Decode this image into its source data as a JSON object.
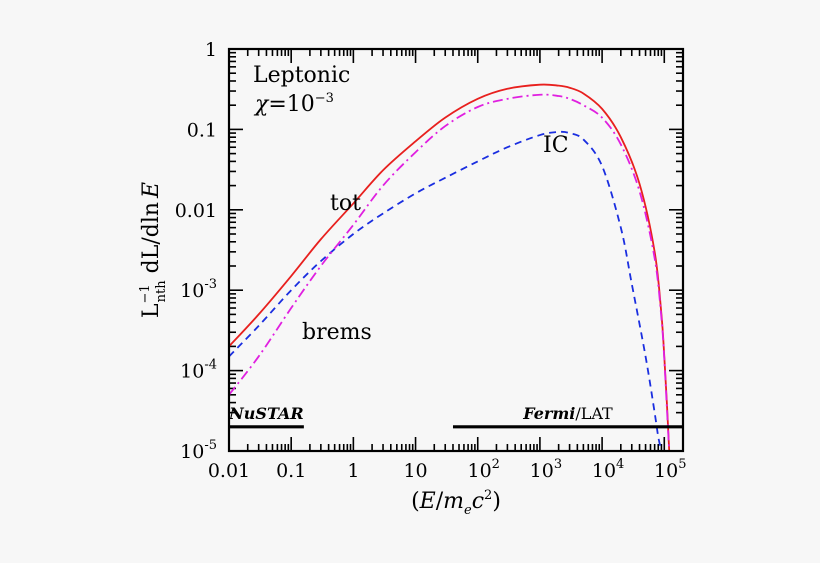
{
  "chart_data": {
    "type": "line",
    "xscale": "log",
    "yscale": "log",
    "xlim": [
      0.01,
      200000
    ],
    "ylim": [
      1e-05,
      1
    ],
    "xlabel": {
      "pre": "(",
      "E": "E",
      "slash": "/",
      "m": "m",
      "e": "e",
      "c": "c",
      "two": "2",
      "post": ")"
    },
    "ylabel": {
      "L": "L",
      "minus1": "−1",
      "nth": "nth",
      "dL": " dL/dln",
      "E": "E"
    },
    "xticks": [
      {
        "v": 0.01,
        "text": "0.01"
      },
      {
        "v": 0.1,
        "text": "0.1"
      },
      {
        "v": 1,
        "text": "1"
      },
      {
        "v": 10,
        "text": "10"
      },
      {
        "v": 100,
        "base": "10",
        "exp": "2"
      },
      {
        "v": 1000,
        "base": "10",
        "exp": "3"
      },
      {
        "v": 10000,
        "base": "10",
        "exp": "4"
      },
      {
        "v": 100000,
        "base": "10",
        "exp": "5"
      }
    ],
    "yticks": [
      {
        "v": 1,
        "text": "1"
      },
      {
        "v": 0.1,
        "text": "0.1"
      },
      {
        "v": 0.01,
        "text": "0.01"
      },
      {
        "v": 0.001,
        "base": "10",
        "exp": "-3"
      },
      {
        "v": 0.0001,
        "base": "10",
        "exp": "-4"
      },
      {
        "v": 1e-05,
        "base": "10",
        "exp": "-5"
      }
    ],
    "series": [
      {
        "name": "tot",
        "color": "#e8201e",
        "dash": "solid",
        "x": [
          0.01,
          0.03,
          0.1,
          0.3,
          1,
          3,
          10,
          30,
          100,
          300,
          1000,
          2000,
          3000,
          5000,
          10000,
          20000,
          40000,
          70000,
          90000,
          100000,
          110000,
          120000
        ],
        "y": [
          0.0002,
          0.0005,
          0.0015,
          0.0043,
          0.012,
          0.031,
          0.071,
          0.14,
          0.24,
          0.32,
          0.36,
          0.35,
          0.33,
          0.28,
          0.18,
          0.08,
          0.021,
          0.003,
          0.0005,
          0.00015,
          4e-05,
          1e-05
        ]
      },
      {
        "name": "IC",
        "color": "#1a2ee0",
        "dash": "7,5",
        "x": [
          0.01,
          0.03,
          0.1,
          0.3,
          1,
          3,
          10,
          30,
          100,
          300,
          1000,
          2000,
          3000,
          5000,
          10000,
          20000,
          30000,
          50000,
          70000,
          80000,
          90000
        ],
        "y": [
          0.00015,
          0.00036,
          0.001,
          0.0023,
          0.005,
          0.009,
          0.016,
          0.025,
          0.04,
          0.06,
          0.085,
          0.093,
          0.09,
          0.075,
          0.035,
          0.006,
          0.0012,
          0.00015,
          3e-05,
          1.5e-05,
          1e-05
        ]
      },
      {
        "name": "brems",
        "color": "#e020e0",
        "dash": "10,4,2,4",
        "x": [
          0.01,
          0.03,
          0.1,
          0.3,
          1,
          3,
          10,
          30,
          100,
          300,
          1000,
          2000,
          3000,
          5000,
          10000,
          20000,
          40000,
          70000,
          90000,
          100000,
          110000,
          120000
        ],
        "y": [
          5e-05,
          0.00015,
          0.0006,
          0.002,
          0.0065,
          0.02,
          0.052,
          0.11,
          0.19,
          0.24,
          0.27,
          0.26,
          0.24,
          0.2,
          0.14,
          0.065,
          0.017,
          0.0025,
          0.00045,
          0.00014,
          3.5e-05,
          1e-05
        ]
      }
    ],
    "bands": [
      {
        "name": "NuSTAR",
        "prefix": "",
        "suffix": "",
        "xmin": 0.01,
        "xmax": 0.16,
        "y": 2e-05
      },
      {
        "name": "Fermi",
        "prefix": "",
        "suffix": "/LAT",
        "xmin": 40,
        "xmax": 200000,
        "y": 2e-05
      }
    ],
    "annotations": {
      "title": "Leptonic",
      "chi_sym": "χ",
      "chi_eq": "=10",
      "chi_exp": "−3",
      "tot": "tot",
      "IC": "IC",
      "brems": "brems"
    },
    "legend": "none",
    "grid": false
  }
}
